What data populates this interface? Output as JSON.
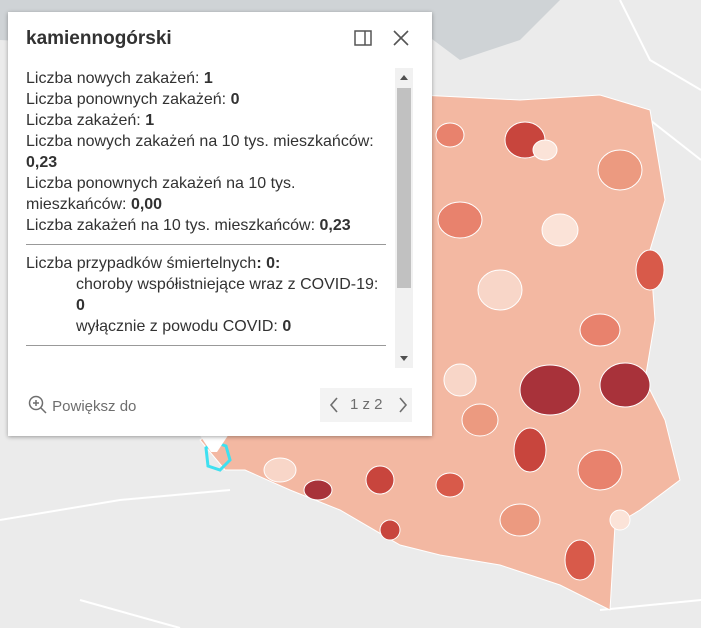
{
  "popup": {
    "title": "kamiennogórski",
    "fields": [
      {
        "label": "Liczba nowych zakażeń:",
        "value": "1"
      },
      {
        "label": "Liczba ponownych zakażeń:",
        "value": "0"
      },
      {
        "label": "Liczba zakażeń:",
        "value": "1"
      },
      {
        "label": "Liczba nowych zakażeń na 10 tys. mieszkańców:",
        "value": "0,23"
      },
      {
        "label": "Liczba ponownych zakażeń na 10 tys. mieszkańców:",
        "value": "0,00"
      },
      {
        "label": "Liczba zakażeń na 10 tys. mieszkańców:",
        "value": "0,23"
      }
    ],
    "deaths": {
      "label": "Liczba przypadków śmiertelnych",
      "value": ": 0:",
      "items": [
        {
          "label": "choroby współistniejące wraz z COVID-19:",
          "value": "0"
        },
        {
          "label": "wyłącznie z powodu COVID:",
          "value": "0"
        }
      ]
    },
    "zoom": "Powiększ do",
    "pager": "1 z 2"
  }
}
